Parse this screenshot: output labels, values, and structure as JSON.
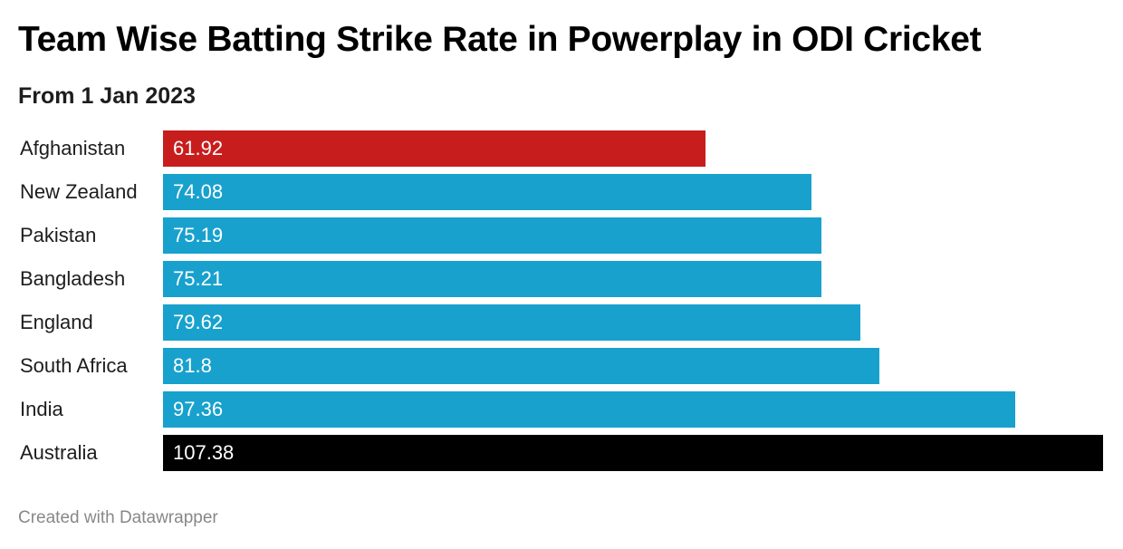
{
  "title": "Team Wise Batting Strike Rate in Powerplay in ODI Cricket",
  "subtitle": "From 1 Jan 2023",
  "footer": "Created with Datawrapper",
  "chart_data": {
    "type": "bar",
    "orientation": "horizontal",
    "title": "Team Wise Batting Strike Rate in Powerplay in ODI Cricket",
    "subtitle": "From 1 Jan 2023",
    "categories": [
      "Afghanistan",
      "New Zealand",
      "Pakistan",
      "Bangladesh",
      "England",
      "South Africa",
      "India",
      "Australia"
    ],
    "values": [
      61.92,
      74.08,
      75.19,
      75.21,
      79.62,
      81.8,
      97.36,
      107.38
    ],
    "value_labels": [
      "61.92",
      "74.08",
      "75.19",
      "75.21",
      "79.62",
      "81.8",
      "97.36",
      "107.38"
    ],
    "colors": [
      "#c71e1d",
      "#18a1cd",
      "#18a1cd",
      "#18a1cd",
      "#18a1cd",
      "#18a1cd",
      "#18a1cd",
      "#000000"
    ],
    "xlim": [
      0,
      107.38
    ],
    "grid": false,
    "legend": "none"
  }
}
